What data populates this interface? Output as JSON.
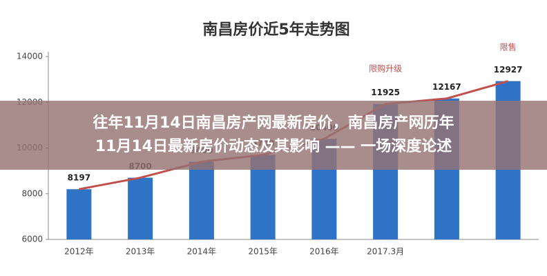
{
  "chart_data": {
    "type": "bar_line",
    "title": "南昌房价近5年走势图",
    "categories": [
      "2012年",
      "2013年",
      "2014年",
      "2015年",
      "2016年",
      "2017.3月",
      null,
      null
    ],
    "series": [
      {
        "type": "bar",
        "color": "#2f73c6",
        "values": [
          8197,
          8700,
          9400,
          9700,
          10400,
          11925,
          12167,
          12927
        ]
      },
      {
        "type": "line",
        "color": "#c0504d",
        "values": [
          8197,
          8700,
          9400,
          9700,
          10400,
          11925,
          12167,
          12927
        ]
      }
    ],
    "annotations": [
      "限购升级",
      "限售"
    ],
    "ylim": [
      6000,
      14000
    ],
    "yticks": [
      6000,
      8000,
      10000,
      12000,
      14000
    ]
  },
  "banner": {
    "lines": [
      "往年11月14日南昌房产网最新房价，南昌房产网历年",
      "11月14日最新房价动态及其影响 —— 一场深度论述"
    ]
  }
}
